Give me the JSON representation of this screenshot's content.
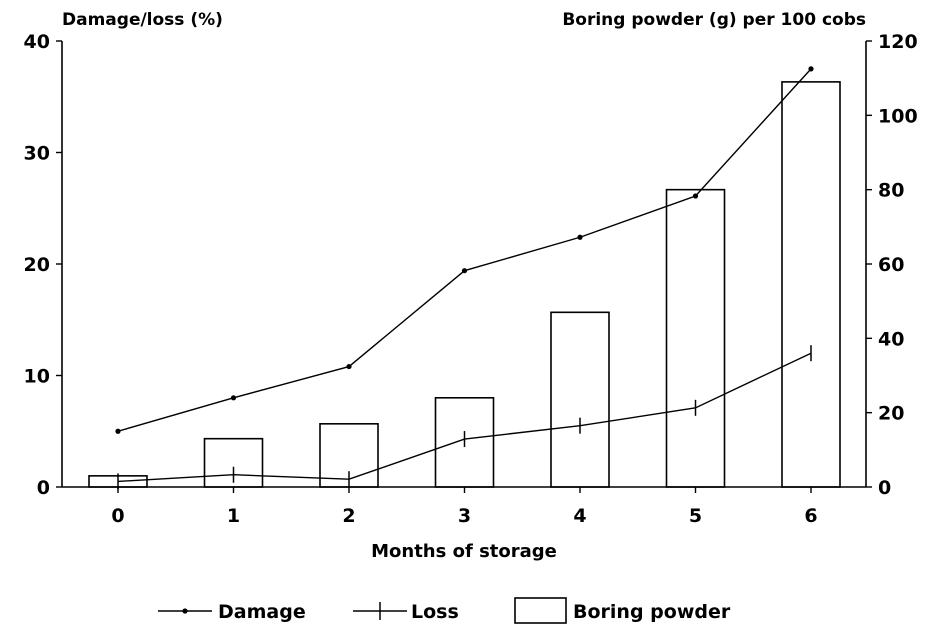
{
  "chart_data": {
    "type": "bar",
    "categories": [
      "0",
      "1",
      "2",
      "3",
      "4",
      "5",
      "6"
    ],
    "xlabel": "Months of storage",
    "ylabel_left": "Damage/loss (%)",
    "ylabel_right": "Boring powder (g) per 100 cobs",
    "ylim_left": [
      0,
      40
    ],
    "yticks_left": [
      "0",
      "10",
      "20",
      "30",
      "40"
    ],
    "ylim_right": [
      0,
      120
    ],
    "yticks_right": [
      "0",
      "20",
      "40",
      "60",
      "80",
      "100",
      "120"
    ],
    "grid": false,
    "legend_position": "bottom",
    "series": [
      {
        "name": "Damage",
        "kind": "line",
        "marker": "dot",
        "axis": "left",
        "values": [
          5,
          8,
          10.8,
          19.4,
          22.4,
          26.1,
          37.5
        ]
      },
      {
        "name": "Loss",
        "kind": "line",
        "marker": "cross",
        "axis": "left",
        "values": [
          0.5,
          1.1,
          0.7,
          4.3,
          5.5,
          7.1,
          12
        ]
      },
      {
        "name": "Boring powder",
        "kind": "bar",
        "axis": "right",
        "values": [
          3,
          13,
          17,
          24,
          47,
          80,
          109
        ]
      }
    ]
  }
}
